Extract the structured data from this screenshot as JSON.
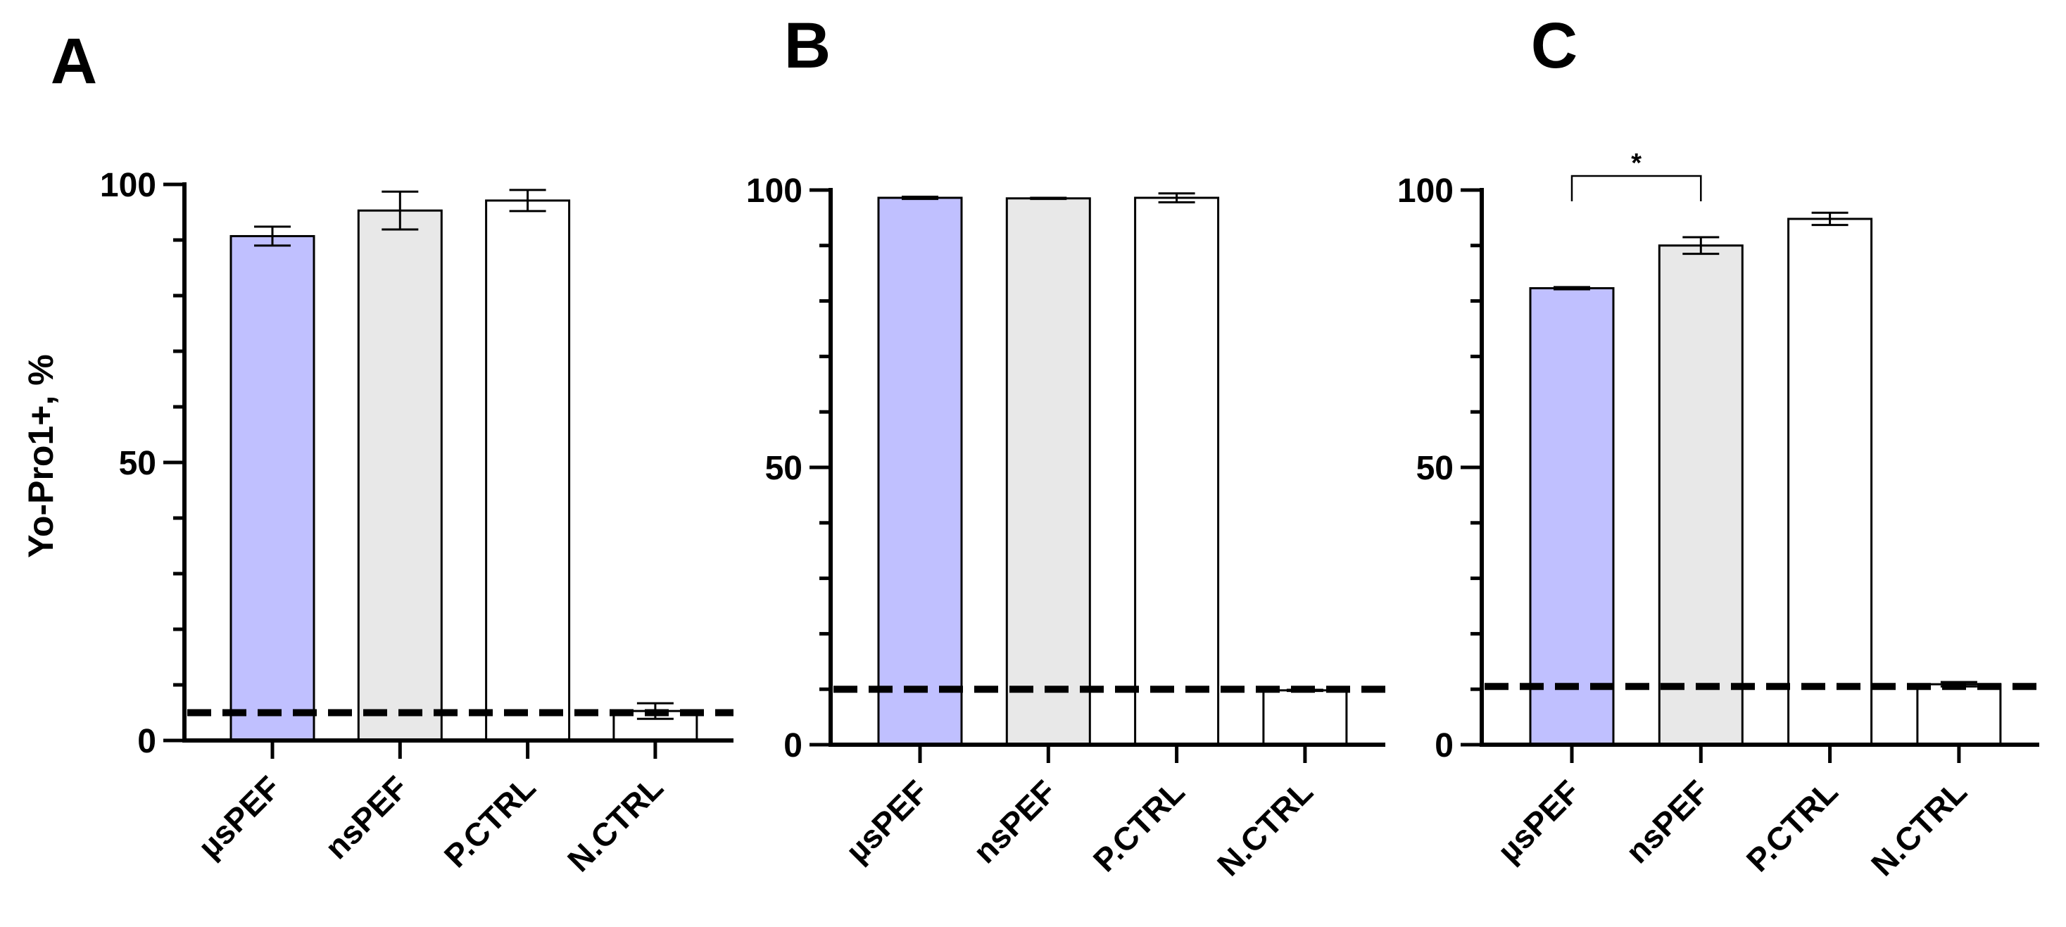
{
  "figure": {
    "ylabel": "Yo-Pro1+, %",
    "colors": {
      "purple": "#c0c0ff",
      "gray": "#e8e8e8",
      "white": "#ffffff",
      "stroke": "#000000"
    }
  },
  "chart_data": [
    {
      "type": "bar",
      "panel_label": "A",
      "categories": [
        "µsPEF",
        "nsPEF",
        "P.CTRL",
        "N.CTRL"
      ],
      "values": [
        90.7,
        95.3,
        97.1,
        5.3
      ],
      "errors": [
        1.7,
        3.4,
        1.9,
        1.4
      ],
      "fills": [
        "purple",
        "gray",
        "white",
        "white"
      ],
      "baseline": 5,
      "yticks": [
        0,
        50,
        100
      ],
      "ylim": [
        0,
        100
      ],
      "ylabel": "Yo-Pro1+, %",
      "significance": []
    },
    {
      "type": "bar",
      "panel_label": "B",
      "categories": [
        "µsPEF",
        "nsPEF",
        "P.CTRL",
        "N.CTRL"
      ],
      "values": [
        98.6,
        98.5,
        98.6,
        9.8
      ],
      "errors": [
        0.2,
        0.1,
        0.8,
        0.1
      ],
      "fills": [
        "purple",
        "gray",
        "white",
        "white"
      ],
      "baseline": 10,
      "yticks": [
        0,
        50,
        100
      ],
      "ylim": [
        0,
        100
      ],
      "ylabel": "",
      "significance": []
    },
    {
      "type": "bar",
      "panel_label": "C",
      "categories": [
        "µsPEF",
        "nsPEF",
        "P.CTRL",
        "N.CTRL"
      ],
      "values": [
        82.3,
        90.0,
        94.8,
        10.9
      ],
      "errors": [
        0.2,
        1.5,
        1.1,
        0.4
      ],
      "fills": [
        "purple",
        "gray",
        "white",
        "white"
      ],
      "baseline": 10.5,
      "yticks": [
        0,
        50,
        100
      ],
      "ylim": [
        0,
        100
      ],
      "ylabel": "",
      "significance": [
        {
          "from": 0,
          "to": 1,
          "label": "*"
        }
      ]
    }
  ]
}
